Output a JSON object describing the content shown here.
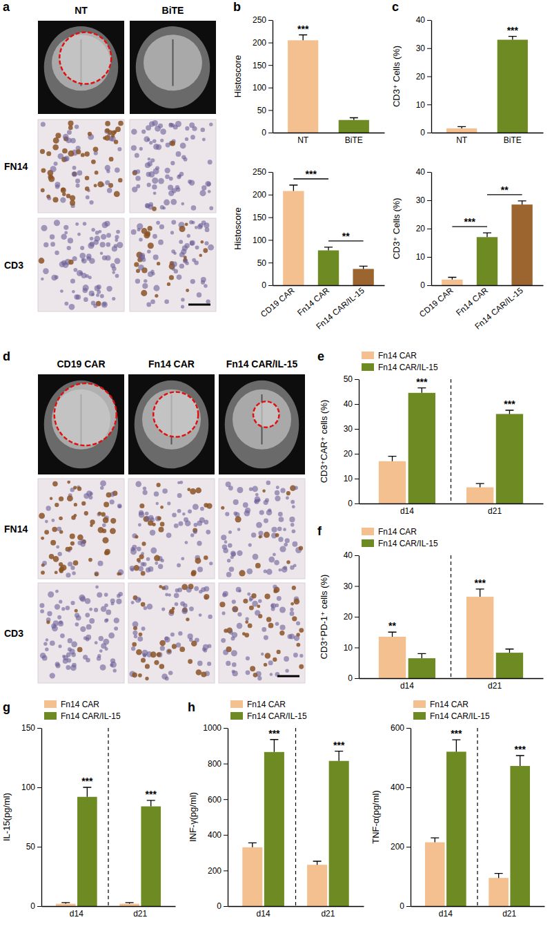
{
  "panel_labels": [
    "a",
    "b",
    "c",
    "d",
    "e",
    "f",
    "g",
    "h"
  ],
  "image_panels": [
    {
      "columns": [
        "NT",
        "BiTE"
      ],
      "rows": [
        "FN14",
        "CD3"
      ]
    },
    {
      "columns": [
        "CD19 CAR",
        "Fn14 CAR",
        "Fn14 CAR/IL-15"
      ],
      "rows": [
        "FN14",
        "CD3"
      ]
    }
  ],
  "chart_data": [
    {
      "type": "bar",
      "y_label": "Histoscore",
      "categories": [
        "NT",
        "BiTE"
      ],
      "values": [
        205,
        28
      ],
      "errors": [
        12,
        5
      ],
      "colors": [
        "#f5c08f",
        "#6d8b22"
      ],
      "ylim": [
        0,
        250
      ],
      "yticks": [
        0,
        50,
        100,
        150,
        200,
        250
      ],
      "annotations": [
        {
          "index": 0,
          "text": "***"
        }
      ]
    },
    {
      "type": "bar",
      "y_label": "Histoscore",
      "categories": [
        "CD19 CAR",
        "Fn14 CAR",
        "Fn14 CAR/IL-15"
      ],
      "values": [
        208,
        77,
        36
      ],
      "errors": [
        13,
        7,
        6
      ],
      "colors": [
        "#f5c08f",
        "#6d8b22",
        "#9c6530"
      ],
      "ylim": [
        0,
        250
      ],
      "yticks": [
        0,
        50,
        100,
        150,
        200,
        250
      ],
      "annotations": [
        {
          "from": 0,
          "to": 1,
          "text": "***"
        },
        {
          "from": 1,
          "to": 2,
          "text": "**"
        }
      ]
    },
    {
      "type": "bar",
      "y_label": "CD3⁺ Cells (%)",
      "categories": [
        "NT",
        "BiTE"
      ],
      "values": [
        1.5,
        33
      ],
      "errors": [
        0.6,
        1.2
      ],
      "colors": [
        "#f5c08f",
        "#6d8b22"
      ],
      "ylim": [
        0,
        40
      ],
      "yticks": [
        0,
        10,
        20,
        30,
        40
      ],
      "annotations": [
        {
          "index": 1,
          "text": "***"
        }
      ]
    },
    {
      "type": "bar",
      "y_label": "CD3⁺ Cells (%)",
      "categories": [
        "CD19 CAR",
        "Fn14 CAR",
        "Fn14 CAR/IL-15"
      ],
      "values": [
        2,
        17,
        28.5
      ],
      "errors": [
        0.8,
        1.5,
        1.3
      ],
      "colors": [
        "#f5c08f",
        "#6d8b22",
        "#9c6530"
      ],
      "ylim": [
        0,
        40
      ],
      "yticks": [
        0,
        10,
        20,
        30,
        40
      ],
      "annotations": [
        {
          "from": 0,
          "to": 1,
          "text": "***"
        },
        {
          "from": 1,
          "to": 2,
          "text": "**"
        }
      ]
    },
    {
      "type": "bar",
      "y_label": "CD3⁺CAR⁺ cells (%)",
      "categories": [
        "d14",
        "d21"
      ],
      "series": [
        {
          "name": "Fn14 CAR",
          "color": "#f5c08f",
          "values": [
            17,
            6.5
          ],
          "errors": [
            2,
            1.5
          ]
        },
        {
          "name": "Fn14 CAR/IL-15",
          "color": "#6d8b22",
          "values": [
            44.5,
            36
          ],
          "errors": [
            2,
            1.5
          ]
        }
      ],
      "ylim": [
        0,
        50
      ],
      "yticks": [
        0,
        10,
        20,
        30,
        40,
        50
      ],
      "legend": "top-left",
      "annotations": [
        {
          "series": 1,
          "index": 0,
          "text": "***"
        },
        {
          "series": 1,
          "index": 1,
          "text": "***"
        }
      ]
    },
    {
      "type": "bar",
      "y_label": "CD3⁺PD-1⁺ cells (%)",
      "categories": [
        "d14",
        "d21"
      ],
      "series": [
        {
          "name": "Fn14 CAR",
          "color": "#f5c08f",
          "values": [
            13.5,
            26.5
          ],
          "errors": [
            1.5,
            2.5
          ]
        },
        {
          "name": "Fn14 CAR/IL-15",
          "color": "#6d8b22",
          "values": [
            6.5,
            8.3
          ],
          "errors": [
            1.5,
            1.2
          ]
        }
      ],
      "ylim": [
        0,
        40
      ],
      "yticks": [
        0,
        10,
        20,
        30,
        40
      ],
      "legend": "top-left",
      "annotations": [
        {
          "series": 0,
          "index": 0,
          "text": "**"
        },
        {
          "series": 0,
          "index": 1,
          "text": "***"
        }
      ]
    },
    {
      "type": "bar",
      "y_label": "IL-15(pg/ml)",
      "categories": [
        "d14",
        "d21"
      ],
      "series": [
        {
          "name": "Fn14 CAR",
          "color": "#f5c08f",
          "values": [
            2,
            2
          ],
          "errors": [
            1,
            1
          ]
        },
        {
          "name": "Fn14 CAR/IL-15",
          "color": "#6d8b22",
          "values": [
            92,
            84
          ],
          "errors": [
            8,
            5
          ]
        }
      ],
      "ylim": [
        0,
        150
      ],
      "yticks": [
        0,
        50,
        100,
        150
      ],
      "legend": "top-left",
      "annotations": [
        {
          "series": 1,
          "index": 0,
          "text": "***"
        },
        {
          "series": 1,
          "index": 1,
          "text": "***"
        }
      ]
    },
    {
      "type": "bar",
      "y_label": "INF-γ(pg/ml)",
      "categories": [
        "d14",
        "d21"
      ],
      "series": [
        {
          "name": "Fn14 CAR",
          "color": "#f5c08f",
          "values": [
            330,
            232
          ],
          "errors": [
            25,
            20
          ]
        },
        {
          "name": "Fn14 CAR/IL-15",
          "color": "#6d8b22",
          "values": [
            865,
            815
          ],
          "errors": [
            70,
            55
          ]
        }
      ],
      "ylim": [
        0,
        1000
      ],
      "yticks": [
        0,
        200,
        400,
        600,
        800,
        1000
      ],
      "legend": "top-left",
      "annotations": [
        {
          "series": 1,
          "index": 0,
          "text": "***"
        },
        {
          "series": 1,
          "index": 1,
          "text": "***"
        }
      ]
    },
    {
      "type": "bar",
      "y_label": "TNF-α(pg/ml)",
      "categories": [
        "d14",
        "d21"
      ],
      "series": [
        {
          "name": "Fn14 CAR",
          "color": "#f5c08f",
          "values": [
            215,
            95
          ],
          "errors": [
            15,
            15
          ]
        },
        {
          "name": "Fn14 CAR/IL-15",
          "color": "#6d8b22",
          "values": [
            520,
            472
          ],
          "errors": [
            40,
            35
          ]
        }
      ],
      "ylim": [
        0,
        600
      ],
      "yticks": [
        0,
        200,
        400,
        600
      ],
      "legend": "top-left",
      "annotations": [
        {
          "series": 1,
          "index": 0,
          "text": "***"
        },
        {
          "series": 1,
          "index": 1,
          "text": "***"
        }
      ]
    }
  ]
}
